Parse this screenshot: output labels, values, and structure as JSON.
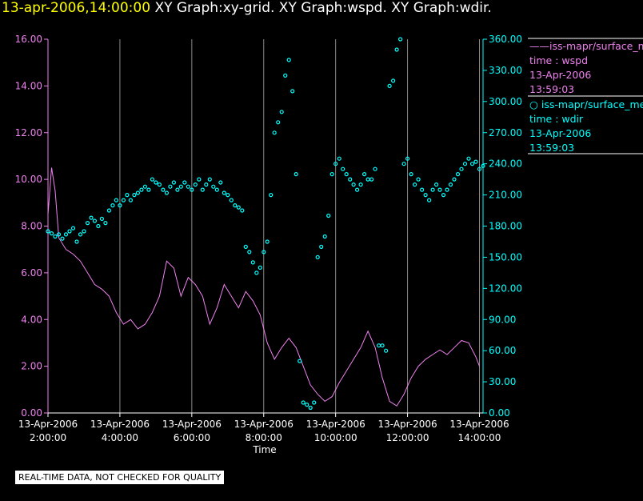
{
  "title": {
    "datetime": "13-apr-2006,14:00:00",
    "graphs": "XY Graph:xy-grid.  XY Graph:wspd.  XY Graph:wdir."
  },
  "legend": [
    {
      "prefix": "——",
      "series": "iss-mapr/surface_met",
      "label": "time : wspd",
      "date": "13-Apr-2006",
      "time": "13:59:03",
      "color": "#ee82ee"
    },
    {
      "prefix": "○ ",
      "series": "iss-mapr/surface_met",
      "label": "time : wdir",
      "date": "13-Apr-2006",
      "time": "13:59:03",
      "color": "#00ffff"
    }
  ],
  "note": "REAL-TIME DATA, NOT CHECKED FOR QUALITY",
  "chart_data": {
    "type": "line",
    "xlabel": "Time",
    "x_range_hours": [
      2.0,
      14.1
    ],
    "x_ticks": [
      {
        "h": 2,
        "date": "13-Apr-2006",
        "time": "2:00:00"
      },
      {
        "h": 4,
        "date": "13-Apr-2006",
        "time": "4:00:00"
      },
      {
        "h": 6,
        "date": "13-Apr-2006",
        "time": "6:00:00"
      },
      {
        "h": 8,
        "date": "13-Apr-2006",
        "time": "8:00:00"
      },
      {
        "h": 10,
        "date": "13-Apr-2006",
        "time": "10:00:00"
      },
      {
        "h": 12,
        "date": "13-Apr-2006",
        "time": "12:00:00"
      },
      {
        "h": 14,
        "date": "13-Apr-2006",
        "time": "14:00:00"
      }
    ],
    "y_left": {
      "min": 0,
      "max": 16,
      "ticks": [
        "0.00",
        "2.00",
        "4.00",
        "6.00",
        "8.00",
        "10.00",
        "12.00",
        "14.00",
        "16.00"
      ],
      "color": "#ee82ee"
    },
    "y_right": {
      "min": 0,
      "max": 360,
      "ticks": [
        "0.00",
        "30.00",
        "60.00",
        "90.00",
        "120.00",
        "150.00",
        "180.00",
        "210.00",
        "240.00",
        "270.00",
        "300.00",
        "330.00",
        "360.00"
      ],
      "color": "#00ffff"
    },
    "grid": "vertical at each x tick",
    "series": [
      {
        "name": "wspd",
        "type": "line",
        "axis": "left",
        "color": "#ee82ee",
        "x": [
          2.0,
          2.1,
          2.2,
          2.3,
          2.5,
          2.7,
          2.9,
          3.1,
          3.3,
          3.5,
          3.7,
          3.9,
          4.1,
          4.3,
          4.5,
          4.7,
          4.9,
          5.1,
          5.3,
          5.5,
          5.7,
          5.9,
          6.1,
          6.3,
          6.5,
          6.7,
          6.9,
          7.1,
          7.3,
          7.5,
          7.7,
          7.9,
          8.1,
          8.3,
          8.5,
          8.7,
          8.9,
          9.1,
          9.3,
          9.5,
          9.7,
          9.9,
          10.1,
          10.3,
          10.5,
          10.7,
          10.9,
          11.1,
          11.3,
          11.5,
          11.7,
          11.9,
          12.1,
          12.3,
          12.5,
          12.7,
          12.9,
          13.1,
          13.3,
          13.5,
          13.7,
          13.9,
          14.0
        ],
        "y": [
          8.5,
          10.5,
          9.5,
          7.5,
          7.0,
          6.8,
          6.5,
          6.0,
          5.5,
          5.3,
          5.0,
          4.3,
          3.8,
          4.0,
          3.6,
          3.8,
          4.3,
          5.0,
          6.5,
          6.2,
          5.0,
          5.8,
          5.5,
          5.0,
          3.8,
          4.5,
          5.5,
          5.0,
          4.5,
          5.2,
          4.8,
          4.2,
          3.0,
          2.3,
          2.8,
          3.2,
          2.8,
          2.0,
          1.2,
          0.8,
          0.5,
          0.7,
          1.3,
          1.8,
          2.3,
          2.8,
          3.5,
          2.8,
          1.5,
          0.5,
          0.3,
          0.8,
          1.5,
          2.0,
          2.3,
          2.5,
          2.7,
          2.5,
          2.8,
          3.1,
          3.0,
          2.4,
          2.0
        ]
      },
      {
        "name": "wdir",
        "type": "scatter",
        "axis": "right",
        "color": "#00ffff",
        "x": [
          2.0,
          2.1,
          2.2,
          2.3,
          2.4,
          2.5,
          2.6,
          2.7,
          2.8,
          2.9,
          3.0,
          3.1,
          3.2,
          3.3,
          3.4,
          3.5,
          3.6,
          3.7,
          3.8,
          3.9,
          4.0,
          4.1,
          4.2,
          4.3,
          4.4,
          4.5,
          4.6,
          4.7,
          4.8,
          4.9,
          5.0,
          5.1,
          5.2,
          5.3,
          5.4,
          5.5,
          5.6,
          5.7,
          5.8,
          5.9,
          6.0,
          6.1,
          6.2,
          6.3,
          6.4,
          6.5,
          6.6,
          6.7,
          6.8,
          6.9,
          7.0,
          7.1,
          7.2,
          7.3,
          7.4,
          7.5,
          7.6,
          7.7,
          7.8,
          7.9,
          8.0,
          8.1,
          8.2,
          8.3,
          8.4,
          8.5,
          8.6,
          8.7,
          8.8,
          8.9,
          9.0,
          9.1,
          9.2,
          9.3,
          9.4,
          9.5,
          9.6,
          9.7,
          9.8,
          9.9,
          10.0,
          10.1,
          10.2,
          10.3,
          10.4,
          10.5,
          10.6,
          10.7,
          10.8,
          10.9,
          11.0,
          11.1,
          11.2,
          11.3,
          11.4,
          11.5,
          11.6,
          11.7,
          11.8,
          11.9,
          12.0,
          12.1,
          12.2,
          12.3,
          12.4,
          12.5,
          12.6,
          12.7,
          12.8,
          12.9,
          13.0,
          13.1,
          13.2,
          13.3,
          13.4,
          13.5,
          13.6,
          13.7,
          13.8,
          13.9,
          14.0,
          14.1
        ],
        "y": [
          175,
          173,
          170,
          172,
          168,
          172,
          175,
          178,
          165,
          172,
          175,
          183,
          188,
          185,
          180,
          187,
          183,
          195,
          200,
          205,
          200,
          205,
          210,
          205,
          210,
          212,
          215,
          218,
          215,
          225,
          222,
          220,
          215,
          212,
          218,
          222,
          215,
          218,
          222,
          218,
          215,
          220,
          225,
          215,
          220,
          225,
          218,
          215,
          222,
          212,
          210,
          205,
          200,
          198,
          195,
          160,
          155,
          145,
          135,
          140,
          155,
          165,
          210,
          270,
          280,
          290,
          325,
          340,
          310,
          230,
          50,
          10,
          8,
          5,
          10,
          150,
          160,
          170,
          190,
          230,
          240,
          245,
          235,
          230,
          225,
          220,
          215,
          220,
          230,
          225,
          225,
          235,
          65,
          65,
          60,
          315,
          320,
          350,
          360,
          240,
          245,
          230,
          220,
          225,
          215,
          210,
          205,
          215,
          220,
          215,
          210,
          215,
          220,
          225,
          230,
          235,
          240,
          245,
          240,
          242,
          235,
          238
        ]
      }
    ]
  }
}
